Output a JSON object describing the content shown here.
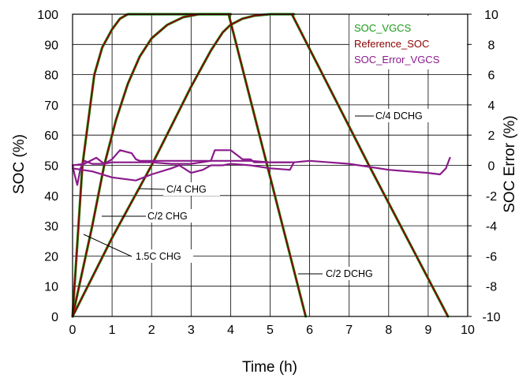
{
  "chart_data": {
    "type": "line",
    "title": "",
    "xlabel": "Time (h)",
    "ylabel": "SOC (%)",
    "y2label": "SOC Error (%)",
    "xlim": [
      0,
      10
    ],
    "ylim": [
      0,
      100
    ],
    "y2lim": [
      -10,
      10
    ],
    "xticks": [
      "0",
      "1",
      "2",
      "3",
      "4",
      "5",
      "6",
      "7",
      "8",
      "9",
      "10"
    ],
    "yticks": [
      "0",
      "10",
      "20",
      "30",
      "40",
      "50",
      "60",
      "70",
      "80",
      "90",
      "100"
    ],
    "y2ticks": [
      "-10",
      "-8",
      "-6",
      "-4",
      "-2",
      "0",
      "2",
      "4",
      "6",
      "8",
      "10"
    ],
    "grid": true,
    "legend_position": "top-right",
    "colors": {
      "soc_vgcs": "#1a9a1a",
      "reference_soc": "#8b0000",
      "soc_error": "#8b1a8b"
    },
    "legend": [
      "SOC_VGCS",
      "Reference_SOC",
      "SOC_Error_VGCS"
    ],
    "annotations": [
      {
        "text": "C/4 DCHG",
        "tip": [
          6.55,
          66
        ]
      },
      {
        "text": "C/4 CHG",
        "tip": [
          1.65,
          42
        ]
      },
      {
        "text": "C/2 CHG",
        "tip": [
          0.7,
          33
        ]
      },
      {
        "text": "1.5C CHG",
        "tip": [
          0.28,
          27
        ]
      },
      {
        "text": "C/2 DCHG",
        "tip": [
          5.75,
          14
        ]
      }
    ],
    "series": [
      {
        "name": "SOC_VGCS",
        "axis": "left",
        "segments": [
          [
            [
              0,
              0
            ],
            [
              0.25,
              50
            ],
            [
              0.55,
              80
            ],
            [
              0.75,
              89
            ],
            [
              1.0,
              95
            ],
            [
              1.2,
              98.5
            ],
            [
              1.4,
              100
            ],
            [
              4.0,
              100
            ]
          ],
          [
            [
              0,
              0
            ],
            [
              1,
              26
            ],
            [
              2,
              50
            ],
            [
              2.5,
              63
            ],
            [
              3,
              76
            ],
            [
              3.5,
              88
            ],
            [
              3.8,
              94
            ],
            [
              4,
              96.5
            ],
            [
              4.3,
              98.5
            ],
            [
              4.6,
              99.5
            ],
            [
              5,
              100
            ],
            [
              5.6,
              100
            ]
          ],
          [
            [
              0,
              0
            ],
            [
              0.5,
              30
            ],
            [
              0.8,
              50
            ],
            [
              1.1,
              65
            ],
            [
              1.4,
              77
            ],
            [
              1.7,
              86
            ],
            [
              2.0,
              92
            ],
            [
              2.4,
              96.5
            ],
            [
              2.8,
              99
            ],
            [
              3.2,
              100
            ],
            [
              4.0,
              100
            ]
          ],
          [
            [
              3.95,
              100
            ],
            [
              5.9,
              0
            ]
          ],
          [
            [
              5.55,
              100
            ],
            [
              7.5,
              50
            ],
            [
              9.5,
              0
            ]
          ]
        ]
      },
      {
        "name": "Reference_SOC",
        "axis": "left",
        "segments": [
          [
            [
              0,
              0
            ],
            [
              0.25,
              50
            ],
            [
              0.55,
              80
            ],
            [
              0.75,
              89
            ],
            [
              1.0,
              95
            ],
            [
              1.2,
              98.5
            ],
            [
              1.4,
              100
            ],
            [
              4.0,
              100
            ]
          ],
          [
            [
              0,
              0
            ],
            [
              1,
              26
            ],
            [
              2,
              50
            ],
            [
              2.5,
              63
            ],
            [
              3,
              76
            ],
            [
              3.5,
              88
            ],
            [
              3.8,
              94
            ],
            [
              4,
              96.5
            ],
            [
              4.3,
              98.5
            ],
            [
              4.6,
              99.5
            ],
            [
              5,
              100
            ],
            [
              5.6,
              100
            ]
          ],
          [
            [
              0,
              0
            ],
            [
              0.5,
              30
            ],
            [
              0.8,
              50
            ],
            [
              1.1,
              65
            ],
            [
              1.4,
              77
            ],
            [
              1.7,
              86
            ],
            [
              2.0,
              92
            ],
            [
              2.4,
              96.5
            ],
            [
              2.8,
              99
            ],
            [
              3.2,
              100
            ],
            [
              4.0,
              100
            ]
          ],
          [
            [
              3.95,
              100
            ],
            [
              5.9,
              0
            ]
          ],
          [
            [
              5.55,
              100
            ],
            [
              7.5,
              50
            ],
            [
              9.5,
              0
            ]
          ]
        ]
      },
      {
        "name": "SOC_Error_VGCS",
        "axis": "right",
        "segments": [
          [
            [
              0,
              0
            ],
            [
              0.05,
              -0.6
            ],
            [
              0.12,
              -1.3
            ],
            [
              0.2,
              -0.2
            ],
            [
              0.3,
              0.3
            ],
            [
              0.5,
              0.1
            ],
            [
              0.8,
              0.1
            ],
            [
              1.0,
              0.2
            ],
            [
              1.4,
              0.2
            ],
            [
              2.0,
              0.2
            ],
            [
              2.5,
              0.1
            ],
            [
              3.0,
              0.1
            ],
            [
              3.5,
              0.3
            ],
            [
              4.0,
              0.3
            ],
            [
              4.5,
              0.3
            ],
            [
              5.0,
              0.2
            ],
            [
              5.5,
              0.2
            ],
            [
              5.6,
              0.2
            ]
          ],
          [
            [
              0,
              0
            ],
            [
              0.3,
              0.1
            ],
            [
              0.6,
              0.5
            ],
            [
              0.8,
              0.1
            ],
            [
              1.0,
              0.4
            ],
            [
              1.2,
              1.0
            ],
            [
              1.5,
              0.8
            ],
            [
              1.6,
              0.4
            ],
            [
              1.7,
              0.3
            ],
            [
              2.0,
              0.3
            ],
            [
              3.0,
              0.3
            ],
            [
              3.5,
              0.3
            ],
            [
              3.6,
              1.0
            ],
            [
              4.0,
              1.0
            ],
            [
              4.3,
              0.4
            ],
            [
              4.5,
              0.4
            ],
            [
              4.6,
              0.2
            ],
            [
              4.8,
              0.2
            ],
            [
              5.5,
              0.2
            ]
          ],
          [
            [
              0,
              -0.2
            ],
            [
              0.5,
              -0.4
            ],
            [
              1.0,
              -0.8
            ],
            [
              1.6,
              -1.0
            ],
            [
              2.0,
              -0.6
            ],
            [
              2.5,
              -0.2
            ],
            [
              2.7,
              0.0
            ],
            [
              3.0,
              -0.5
            ],
            [
              3.3,
              -0.3
            ],
            [
              3.5,
              0.0
            ],
            [
              3.8,
              0.0
            ],
            [
              4.0,
              0.1
            ],
            [
              4.5,
              0.0
            ],
            [
              5.0,
              -0.2
            ],
            [
              5.5,
              -0.3
            ],
            [
              5.6,
              0.2
            ],
            [
              6.0,
              0.3
            ],
            [
              6.5,
              0.2
            ],
            [
              7.0,
              0.1
            ],
            [
              7.5,
              -0.1
            ],
            [
              8.0,
              -0.3
            ],
            [
              8.5,
              -0.4
            ],
            [
              9.0,
              -0.5
            ],
            [
              9.3,
              -0.6
            ],
            [
              9.45,
              -0.2
            ],
            [
              9.55,
              0.5
            ]
          ]
        ]
      }
    ]
  }
}
